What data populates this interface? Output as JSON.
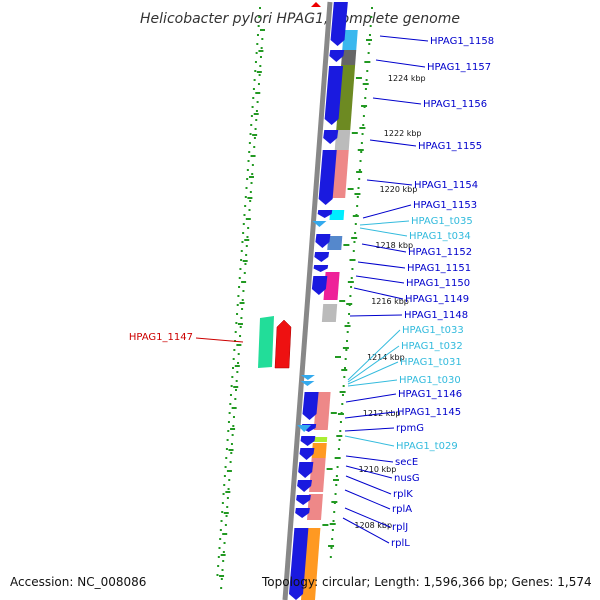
{
  "title": "Helicobacter pylori HPAG1, complete genome",
  "footer": {
    "accession": "Accession: NC_008086",
    "topology": "Topology: circular; Length: 1,596,366 bp; Genes: 1,574"
  },
  "colors": {
    "gene_label": "#0000cc",
    "rna_label": "#33bbdd",
    "highlight_label": "#cc0000",
    "dots": "#229922",
    "backbone": "#888888",
    "cds": "#1a1adf"
  },
  "kbp_ticks": [
    "1224 kbp",
    "1222 kbp",
    "1220 kbp",
    "1218 kbp",
    "1216 kbp",
    "1214 kbp",
    "1212 kbp",
    "1210 kbp",
    "1208 kbp"
  ],
  "labels": [
    {
      "text": "HPAG1_1158",
      "kind": "gene"
    },
    {
      "text": "HPAG1_1157",
      "kind": "gene"
    },
    {
      "text": "HPAG1_1156",
      "kind": "gene"
    },
    {
      "text": "HPAG1_1155",
      "kind": "gene"
    },
    {
      "text": "HPAG1_1154",
      "kind": "gene"
    },
    {
      "text": "HPAG1_1153",
      "kind": "gene"
    },
    {
      "text": "HPAG1_t035",
      "kind": "rna"
    },
    {
      "text": "HPAG1_t034",
      "kind": "rna"
    },
    {
      "text": "HPAG1_1152",
      "kind": "gene"
    },
    {
      "text": "HPAG1_1151",
      "kind": "gene"
    },
    {
      "text": "HPAG1_1150",
      "kind": "gene"
    },
    {
      "text": "HPAG1_1149",
      "kind": "gene"
    },
    {
      "text": "HPAG1_1148",
      "kind": "gene"
    },
    {
      "text": "HPAG1_t033",
      "kind": "rna"
    },
    {
      "text": "HPAG1_t032",
      "kind": "rna"
    },
    {
      "text": "HPAG1_t031",
      "kind": "rna"
    },
    {
      "text": "HPAG1_t030",
      "kind": "rna"
    },
    {
      "text": "HPAG1_1146",
      "kind": "gene"
    },
    {
      "text": "HPAG1_1145",
      "kind": "gene"
    },
    {
      "text": "rpmG",
      "kind": "gene"
    },
    {
      "text": "HPAG1_t029",
      "kind": "rna"
    },
    {
      "text": "secE",
      "kind": "gene"
    },
    {
      "text": "nusG",
      "kind": "gene"
    },
    {
      "text": "rplK",
      "kind": "gene"
    },
    {
      "text": "rplA",
      "kind": "gene"
    },
    {
      "text": "rplJ",
      "kind": "gene"
    },
    {
      "text": "rplL",
      "kind": "gene"
    },
    {
      "text": "HPAG1_1147",
      "kind": "highlight"
    }
  ]
}
